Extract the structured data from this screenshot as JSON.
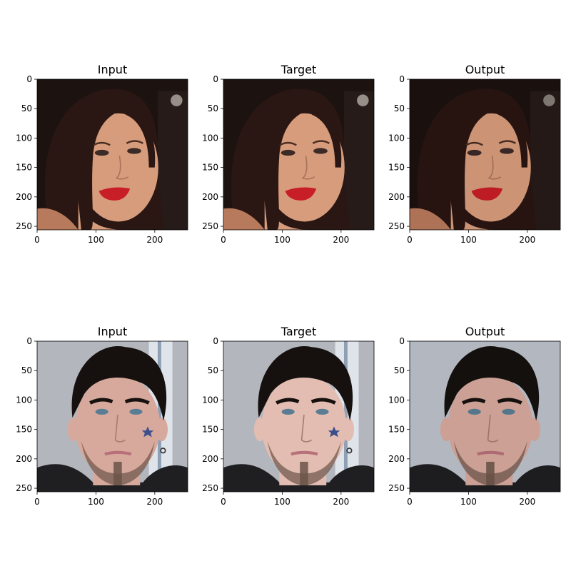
{
  "figure": {
    "rows": [
      {
        "subject": "woman",
        "panels": [
          {
            "title": "Input",
            "variant": "input"
          },
          {
            "title": "Target",
            "variant": "target"
          },
          {
            "title": "Output",
            "variant": "output"
          }
        ]
      },
      {
        "subject": "man",
        "panels": [
          {
            "title": "Input",
            "variant": "input"
          },
          {
            "title": "Target",
            "variant": "target"
          },
          {
            "title": "Output",
            "variant": "output"
          }
        ]
      }
    ],
    "axes": {
      "x_ticks": [
        0,
        100,
        200
      ],
      "y_ticks": [
        0,
        50,
        100,
        150,
        200,
        250
      ],
      "xlim": [
        0,
        256
      ],
      "ylim": [
        0,
        256
      ]
    },
    "colors": {
      "woman_background": "#1c1210",
      "woman_skin": "#d79c7c",
      "woman_hair": "#2a1612",
      "woman_lips": "#c81e28",
      "man_background": "#b3b6bd",
      "man_skin": "#d7a99c",
      "man_hair": "#16110f",
      "man_shirt": "#1f1f22",
      "man_beard": "#6b5449"
    }
  }
}
